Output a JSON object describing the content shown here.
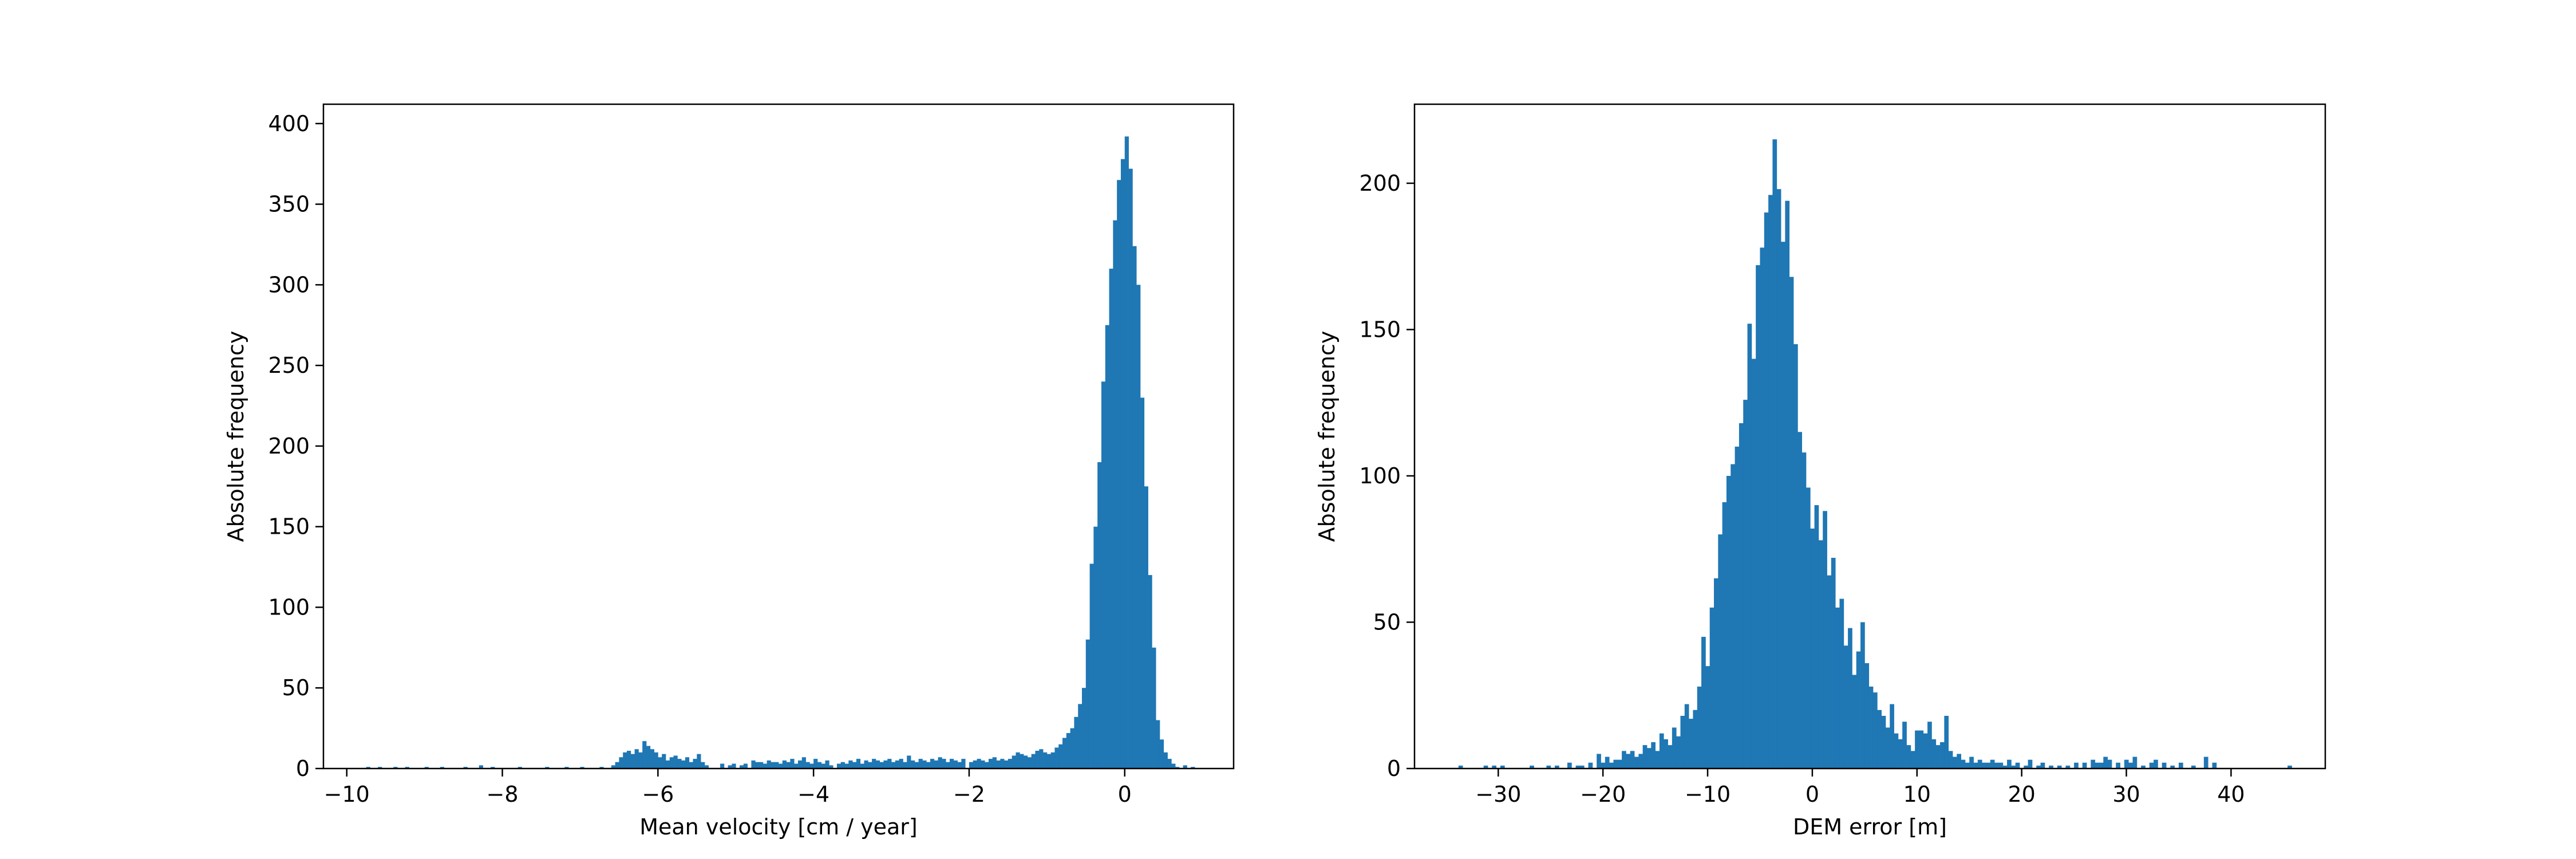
{
  "colors": {
    "bar": "#1f77b4",
    "axis": "#000000",
    "background": "#ffffff"
  },
  "chart_data": [
    {
      "type": "bar",
      "xlabel": "Mean velocity [cm / year]",
      "ylabel": "Absolute frequency",
      "xlim": [
        -10.3,
        1.4
      ],
      "ylim": [
        0,
        412
      ],
      "xticks": [
        -10,
        -8,
        -6,
        -4,
        -2,
        0
      ],
      "xtick_labels": [
        "−10",
        "−8",
        "−6",
        "−4",
        "−2",
        "0"
      ],
      "yticks": [
        0,
        50,
        100,
        150,
        200,
        250,
        300,
        350,
        400
      ],
      "ytick_labels": [
        "0",
        "50",
        "100",
        "150",
        "200",
        "250",
        "300",
        "350",
        "400"
      ],
      "grid": false,
      "bin_width": 0.05,
      "bins": [
        [
          -9.75,
          1
        ],
        [
          -9.6,
          1
        ],
        [
          -9.4,
          1
        ],
        [
          -9.25,
          1
        ],
        [
          -9.0,
          1
        ],
        [
          -8.8,
          1
        ],
        [
          -8.5,
          1
        ],
        [
          -8.3,
          2
        ],
        [
          -8.15,
          1
        ],
        [
          -7.8,
          1
        ],
        [
          -7.45,
          1
        ],
        [
          -7.2,
          1
        ],
        [
          -7.0,
          1
        ],
        [
          -6.75,
          1
        ],
        [
          -6.6,
          2
        ],
        [
          -6.55,
          4
        ],
        [
          -6.5,
          7
        ],
        [
          -6.45,
          10
        ],
        [
          -6.4,
          11
        ],
        [
          -6.35,
          9
        ],
        [
          -6.3,
          12
        ],
        [
          -6.25,
          10
        ],
        [
          -6.2,
          17
        ],
        [
          -6.15,
          14
        ],
        [
          -6.1,
          12
        ],
        [
          -6.05,
          10
        ],
        [
          -6.0,
          7
        ],
        [
          -5.95,
          9
        ],
        [
          -5.9,
          5
        ],
        [
          -5.85,
          7
        ],
        [
          -5.8,
          8
        ],
        [
          -5.75,
          6
        ],
        [
          -5.7,
          5
        ],
        [
          -5.65,
          7
        ],
        [
          -5.6,
          4
        ],
        [
          -5.55,
          6
        ],
        [
          -5.5,
          9
        ],
        [
          -5.45,
          4
        ],
        [
          -5.4,
          2
        ],
        [
          -5.2,
          3
        ],
        [
          -5.1,
          2
        ],
        [
          -5.05,
          3
        ],
        [
          -4.95,
          2
        ],
        [
          -4.9,
          3
        ],
        [
          -4.8,
          5
        ],
        [
          -4.75,
          4
        ],
        [
          -4.7,
          4
        ],
        [
          -4.65,
          3
        ],
        [
          -4.6,
          5
        ],
        [
          -4.55,
          4
        ],
        [
          -4.5,
          4
        ],
        [
          -4.45,
          3
        ],
        [
          -4.4,
          5
        ],
        [
          -4.35,
          4
        ],
        [
          -4.3,
          6
        ],
        [
          -4.25,
          3
        ],
        [
          -4.2,
          5
        ],
        [
          -4.15,
          7
        ],
        [
          -4.1,
          4
        ],
        [
          -4.05,
          3
        ],
        [
          -4.0,
          6
        ],
        [
          -3.95,
          4
        ],
        [
          -3.9,
          3
        ],
        [
          -3.85,
          5
        ],
        [
          -3.8,
          2
        ],
        [
          -3.7,
          3
        ],
        [
          -3.65,
          4
        ],
        [
          -3.6,
          3
        ],
        [
          -3.55,
          5
        ],
        [
          -3.5,
          4
        ],
        [
          -3.45,
          6
        ],
        [
          -3.4,
          3
        ],
        [
          -3.35,
          5
        ],
        [
          -3.3,
          4
        ],
        [
          -3.25,
          6
        ],
        [
          -3.2,
          5
        ],
        [
          -3.15,
          4
        ],
        [
          -3.1,
          5
        ],
        [
          -3.05,
          6
        ],
        [
          -3.0,
          4
        ],
        [
          -2.95,
          5
        ],
        [
          -2.9,
          6
        ],
        [
          -2.85,
          4
        ],
        [
          -2.8,
          8
        ],
        [
          -2.75,
          5
        ],
        [
          -2.7,
          4
        ],
        [
          -2.65,
          6
        ],
        [
          -2.6,
          5
        ],
        [
          -2.55,
          4
        ],
        [
          -2.5,
          6
        ],
        [
          -2.45,
          5
        ],
        [
          -2.4,
          7
        ],
        [
          -2.35,
          6
        ],
        [
          -2.3,
          4
        ],
        [
          -2.25,
          6
        ],
        [
          -2.2,
          5
        ],
        [
          -2.15,
          4
        ],
        [
          -2.1,
          6
        ],
        [
          -2.0,
          4
        ],
        [
          -1.95,
          5
        ],
        [
          -1.9,
          6
        ],
        [
          -1.85,
          5
        ],
        [
          -1.8,
          4
        ],
        [
          -1.75,
          6
        ],
        [
          -1.7,
          7
        ],
        [
          -1.65,
          5
        ],
        [
          -1.6,
          6
        ],
        [
          -1.55,
          5
        ],
        [
          -1.5,
          6
        ],
        [
          -1.45,
          8
        ],
        [
          -1.4,
          10
        ],
        [
          -1.35,
          9
        ],
        [
          -1.3,
          8
        ],
        [
          -1.25,
          7
        ],
        [
          -1.2,
          9
        ],
        [
          -1.15,
          11
        ],
        [
          -1.1,
          12
        ],
        [
          -1.05,
          10
        ],
        [
          -1.0,
          9
        ],
        [
          -0.95,
          10
        ],
        [
          -0.9,
          13
        ],
        [
          -0.85,
          15
        ],
        [
          -0.8,
          19
        ],
        [
          -0.75,
          22
        ],
        [
          -0.7,
          25
        ],
        [
          -0.65,
          32
        ],
        [
          -0.6,
          40
        ],
        [
          -0.55,
          50
        ],
        [
          -0.5,
          80
        ],
        [
          -0.45,
          127
        ],
        [
          -0.4,
          150
        ],
        [
          -0.35,
          190
        ],
        [
          -0.3,
          240
        ],
        [
          -0.25,
          275
        ],
        [
          -0.2,
          310
        ],
        [
          -0.15,
          340
        ],
        [
          -0.1,
          365
        ],
        [
          -0.05,
          378
        ],
        [
          0.0,
          392
        ],
        [
          0.05,
          372
        ],
        [
          0.1,
          324
        ],
        [
          0.15,
          300
        ],
        [
          0.2,
          230
        ],
        [
          0.25,
          175
        ],
        [
          0.3,
          120
        ],
        [
          0.35,
          75
        ],
        [
          0.4,
          30
        ],
        [
          0.45,
          18
        ],
        [
          0.5,
          10
        ],
        [
          0.55,
          6
        ],
        [
          0.6,
          3
        ],
        [
          0.65,
          1
        ],
        [
          0.75,
          2
        ],
        [
          0.85,
          1
        ]
      ]
    },
    {
      "type": "bar",
      "xlabel": "DEM error [m]",
      "ylabel": "Absolute frequency",
      "xlim": [
        -38,
        49
      ],
      "ylim": [
        0,
        227
      ],
      "xticks": [
        -30,
        -20,
        -10,
        0,
        10,
        20,
        30,
        40
      ],
      "xtick_labels": [
        "−30",
        "−20",
        "−10",
        "0",
        "10",
        "20",
        "30",
        "40"
      ],
      "yticks": [
        0,
        50,
        100,
        150,
        200
      ],
      "ytick_labels": [
        "0",
        "50",
        "100",
        "150",
        "200"
      ],
      "grid": false,
      "bin_width": 0.4,
      "bins": [
        [
          -33.8,
          1
        ],
        [
          -31.4,
          1
        ],
        [
          -30.6,
          1
        ],
        [
          -29.8,
          1
        ],
        [
          -27,
          1
        ],
        [
          -25.4,
          1
        ],
        [
          -24.6,
          1
        ],
        [
          -23.4,
          2
        ],
        [
          -22.6,
          1
        ],
        [
          -22.2,
          1
        ],
        [
          -21.4,
          2
        ],
        [
          -20.6,
          5
        ],
        [
          -20.2,
          2
        ],
        [
          -19.8,
          4
        ],
        [
          -19.4,
          2
        ],
        [
          -19.0,
          3
        ],
        [
          -18.6,
          3
        ],
        [
          -18.2,
          6
        ],
        [
          -17.8,
          5
        ],
        [
          -17.4,
          6
        ],
        [
          -17.0,
          4
        ],
        [
          -16.6,
          5
        ],
        [
          -16.2,
          8
        ],
        [
          -15.8,
          7
        ],
        [
          -15.4,
          9
        ],
        [
          -15.0,
          6
        ],
        [
          -14.6,
          12
        ],
        [
          -14.2,
          10
        ],
        [
          -13.8,
          8
        ],
        [
          -13.4,
          14
        ],
        [
          -13.0,
          11
        ],
        [
          -12.6,
          18
        ],
        [
          -12.2,
          22
        ],
        [
          -11.8,
          17
        ],
        [
          -11.4,
          20
        ],
        [
          -11.0,
          28
        ],
        [
          -10.6,
          45
        ],
        [
          -10.2,
          35
        ],
        [
          -9.8,
          55
        ],
        [
          -9.4,
          65
        ],
        [
          -9.0,
          80
        ],
        [
          -8.6,
          91
        ],
        [
          -8.2,
          100
        ],
        [
          -7.8,
          104
        ],
        [
          -7.4,
          110
        ],
        [
          -7.0,
          118
        ],
        [
          -6.6,
          126
        ],
        [
          -6.2,
          152
        ],
        [
          -5.8,
          140
        ],
        [
          -5.4,
          172
        ],
        [
          -5.0,
          178
        ],
        [
          -4.6,
          190
        ],
        [
          -4.2,
          196
        ],
        [
          -3.8,
          215
        ],
        [
          -3.4,
          198
        ],
        [
          -3.0,
          180
        ],
        [
          -2.6,
          194
        ],
        [
          -2.2,
          168
        ],
        [
          -1.8,
          145
        ],
        [
          -1.4,
          115
        ],
        [
          -1.0,
          108
        ],
        [
          -0.6,
          96
        ],
        [
          -0.2,
          82
        ],
        [
          0.2,
          90
        ],
        [
          0.6,
          78
        ],
        [
          1.0,
          88
        ],
        [
          1.4,
          66
        ],
        [
          1.8,
          72
        ],
        [
          2.2,
          55
        ],
        [
          2.6,
          58
        ],
        [
          3.0,
          42
        ],
        [
          3.4,
          48
        ],
        [
          3.8,
          32
        ],
        [
          4.2,
          40
        ],
        [
          4.6,
          50
        ],
        [
          5.0,
          36
        ],
        [
          5.4,
          28
        ],
        [
          5.8,
          26
        ],
        [
          6.2,
          20
        ],
        [
          6.6,
          18
        ],
        [
          7.0,
          14
        ],
        [
          7.4,
          22
        ],
        [
          7.8,
          12
        ],
        [
          8.2,
          10
        ],
        [
          8.6,
          16
        ],
        [
          9.0,
          8
        ],
        [
          9.4,
          6
        ],
        [
          9.8,
          13
        ],
        [
          10.2,
          13
        ],
        [
          10.6,
          12
        ],
        [
          11.0,
          16
        ],
        [
          11.4,
          10
        ],
        [
          11.8,
          8
        ],
        [
          12.2,
          9
        ],
        [
          12.6,
          18
        ],
        [
          13.0,
          6
        ],
        [
          13.4,
          4
        ],
        [
          13.8,
          5
        ],
        [
          14.2,
          3
        ],
        [
          14.6,
          2
        ],
        [
          15.0,
          4
        ],
        [
          15.4,
          2
        ],
        [
          15.8,
          3
        ],
        [
          16.2,
          2
        ],
        [
          16.6,
          2
        ],
        [
          17.0,
          3
        ],
        [
          17.4,
          2
        ],
        [
          17.8,
          2
        ],
        [
          18.2,
          1
        ],
        [
          18.6,
          3
        ],
        [
          19.0,
          1
        ],
        [
          19.4,
          2
        ],
        [
          20.2,
          1
        ],
        [
          20.6,
          3
        ],
        [
          21.4,
          1
        ],
        [
          21.8,
          2
        ],
        [
          22.6,
          1
        ],
        [
          23.4,
          1
        ],
        [
          24.2,
          1
        ],
        [
          25.0,
          2
        ],
        [
          25.8,
          2
        ],
        [
          26.6,
          3
        ],
        [
          27.0,
          2
        ],
        [
          27.4,
          2
        ],
        [
          27.8,
          4
        ],
        [
          28.2,
          3
        ],
        [
          29.0,
          2
        ],
        [
          29.8,
          3
        ],
        [
          30.2,
          2
        ],
        [
          30.6,
          4
        ],
        [
          31.4,
          1
        ],
        [
          32.2,
          2
        ],
        [
          32.6,
          3
        ],
        [
          33.4,
          2
        ],
        [
          34.2,
          1
        ],
        [
          35.0,
          2
        ],
        [
          36.2,
          1
        ],
        [
          37.4,
          4
        ],
        [
          38.2,
          2
        ],
        [
          45.4,
          1
        ]
      ]
    }
  ]
}
